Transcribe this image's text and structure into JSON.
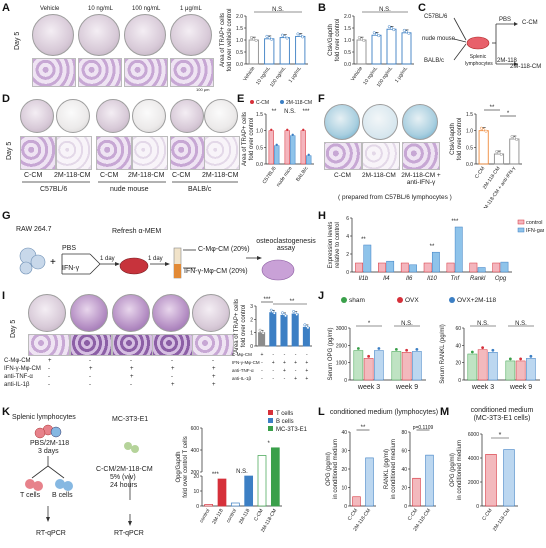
{
  "panel_letters": {
    "a": "A",
    "b": "B",
    "c": "C",
    "d": "D",
    "e": "E",
    "f": "F",
    "g": "G",
    "h": "H",
    "i": "I",
    "j": "J",
    "k": "K",
    "l": "L",
    "m": "M"
  },
  "panelA": {
    "conditions": [
      "Vehicle",
      "10 ng/mL",
      "100 ng/mL",
      "1 μg/mL"
    ],
    "day": "Day 5",
    "scale": "100 μm"
  },
  "panelC": {
    "strains": [
      "C57BL/6",
      "nude mouse",
      "BALB/c"
    ],
    "cell": "Splenic lymphocytes",
    "treat1": "PBS",
    "out1": "C-CM",
    "treat2": "2M-118",
    "out2": "2M-118-CM"
  },
  "panelD": {
    "labels": [
      "C-CM",
      "2M-118-CM",
      "C-CM",
      "2M-118-CM",
      "C-CM",
      "2M-118-CM"
    ],
    "groups": [
      "C57BL/6",
      "nude mouse",
      "BALB/c"
    ],
    "day": "Day 5"
  },
  "panelF": {
    "labels": [
      "C-CM",
      "2M-118-CM",
      "2M-118-CM + anti-IFN-γ"
    ],
    "note": "( prepared from C57BL/6 lymphocytes )"
  },
  "panelG": {
    "cell": "RAW 264.7",
    "pbs": "PBS",
    "ifn": "IFN-γ",
    "day1": "1 day",
    "refresh": "Refresh α-MEM",
    "day2": "1 day",
    "cm1": "C-Mφ-CM (20%)",
    "cm2": "IFN-γ-Mφ-CM (20%)",
    "assay": "osteoclastogenesis assay"
  },
  "panelI": {
    "rows": [
      "C-Mφ-CM",
      "IFN-γ-Mφ-CM",
      "anti-TNF-α",
      "anti-IL-1β"
    ],
    "signs": [
      [
        "+",
        "-",
        "-",
        "-",
        "-"
      ],
      [
        "-",
        "+",
        "+",
        "+",
        "+"
      ],
      [
        "-",
        "-",
        "+",
        "-",
        "+"
      ],
      [
        "-",
        "-",
        "-",
        "+",
        "+"
      ]
    ],
    "day": "Day 5"
  },
  "panelK": {
    "cell": "Splenic lymphocytes",
    "treat": "PBS/2M-118",
    "days": "3 days",
    "tcells": "T cells",
    "bcells": "B cells",
    "rtqpcr1": "RT-qPCR",
    "mc3t3": "MC-3T3-E1",
    "cm": "C-CM/2M-118-CM",
    "conc": "5% (v/v)",
    "hours": "24 hours",
    "rtqpcr2": "RT-qPCR"
  },
  "colors": {
    "grey": "#8c8c8c",
    "blue": "#3c7fc4",
    "red": "#d6303a",
    "pink": "#f4b5bd",
    "lightblue": "#8ec3ea",
    "green": "#3aa04a",
    "orange": "#f08a3a"
  },
  "chart_data": [
    {
      "id": "A",
      "type": "bar",
      "ylabel": "Area of TRAP+ cells fold over vehicle control",
      "categories": [
        "Vehicle",
        "10 ng/mL",
        "100 ng/mL",
        "1 μg/mL"
      ],
      "values": [
        1.0,
        1.05,
        1.1,
        1.15
      ],
      "ylim": [
        0,
        2.0
      ],
      "yticks": [
        "0.0",
        "0.5",
        "1.0",
        "1.5",
        "2.0"
      ],
      "annotation": "N.S."
    },
    {
      "id": "B",
      "type": "bar",
      "ylabel": "Ctsk/Gapdh fold over control",
      "categories": [
        "Vehicle",
        "10 ng/mL",
        "100 ng/mL",
        "1 μg/mL"
      ],
      "values": [
        1.0,
        1.2,
        1.45,
        1.3
      ],
      "ylim": [
        0,
        2.0
      ],
      "yticks": [
        "0.0",
        "0.5",
        "1.0",
        "1.5",
        "2.0"
      ],
      "annotation": "N.S."
    },
    {
      "id": "E",
      "type": "bar",
      "ylabel": "Area of TRAP+ cells fold over control",
      "legend": [
        "C-CM",
        "2M-118-CM"
      ],
      "categories": [
        "C57BL/6",
        "nude mice",
        "BALB/c"
      ],
      "series": [
        {
          "name": "C-CM",
          "values": [
            1.0,
            1.0,
            1.0
          ]
        },
        {
          "name": "2M-118-CM",
          "values": [
            0.55,
            0.85,
            0.25
          ]
        }
      ],
      "ylim": [
        0,
        1.5
      ],
      "yticks": [
        "0.0",
        "0.5",
        "1.0",
        "1.5"
      ],
      "annotations": [
        "**",
        "N.S.",
        "***"
      ]
    },
    {
      "id": "F",
      "type": "bar",
      "ylabel": "Ctsk/Gapdh fold over control",
      "categories": [
        "C-CM",
        "2M-118-CM",
        "2M-118-CM + anti-IFN-γ"
      ],
      "values": [
        1.0,
        0.3,
        0.75
      ],
      "ylim": [
        0,
        1.5
      ],
      "yticks": [
        "0.0",
        "0.5",
        "1.0",
        "1.5"
      ],
      "annotations": [
        "**",
        "*"
      ]
    },
    {
      "id": "H",
      "type": "bar",
      "ylabel": "Expression levels relative to control",
      "legend": [
        "control",
        "IFN-gamma"
      ],
      "categories": [
        "Il1b",
        "Il4",
        "Il6",
        "Il10",
        "Tnf",
        "Rankl",
        "Opg"
      ],
      "series": [
        {
          "name": "control",
          "values": [
            1,
            1,
            1,
            1,
            1,
            1,
            1
          ]
        },
        {
          "name": "IFN-gamma",
          "values": [
            3.0,
            1.2,
            0.8,
            2.2,
            5.0,
            0.5,
            1.1
          ]
        }
      ],
      "ylim": [
        0,
        6
      ],
      "yticks": [
        "0",
        "2",
        "4",
        "6"
      ],
      "annotations": [
        "**",
        "**",
        "***"
      ]
    },
    {
      "id": "I",
      "type": "bar",
      "ylabel": "Area of TRAP+ cells fold over control",
      "categories": [
        "1",
        "2",
        "3",
        "4",
        "5"
      ],
      "values": [
        1.0,
        2.5,
        2.3,
        2.4,
        1.4
      ],
      "ylim": [
        0,
        3
      ],
      "yticks": [
        "0",
        "1",
        "2",
        "3"
      ],
      "annotations": [
        "***",
        "**"
      ]
    },
    {
      "id": "J1",
      "type": "bar",
      "ylabel": "Serum OPG (pg/ml)",
      "legend": [
        "sham",
        "OVX",
        "OVX+2M-118"
      ],
      "categories": [
        "week 3",
        "week 9"
      ],
      "series": [
        {
          "name": "sham",
          "values": [
            1700,
            1650
          ]
        },
        {
          "name": "OVX",
          "values": [
            1250,
            1600
          ]
        },
        {
          "name": "OVX+2M-118",
          "values": [
            1700,
            1650
          ]
        }
      ],
      "ylim": [
        0,
        3000
      ],
      "yticks": [
        "0",
        "1000",
        "2000",
        "3000"
      ],
      "annotations": [
        "*",
        "N.S."
      ]
    },
    {
      "id": "J2",
      "type": "bar",
      "ylabel": "Serum RANKL (pg/ml)",
      "categories": [
        "week 3",
        "week 9"
      ],
      "series": [
        {
          "name": "sham",
          "values": [
            30,
            22
          ]
        },
        {
          "name": "OVX",
          "values": [
            35,
            22
          ]
        },
        {
          "name": "OVX+2M-118",
          "values": [
            32,
            25
          ]
        }
      ],
      "ylim": [
        0,
        60
      ],
      "yticks": [
        "0",
        "20",
        "40",
        "60"
      ],
      "annotations": [
        "N.S.",
        "N.S."
      ]
    },
    {
      "id": "K",
      "type": "bar",
      "ylabel": "Opg/Gapdh fold over control T cells",
      "legend": [
        "T cells",
        "B cells",
        "MC-3T3-E1"
      ],
      "categories": [
        "control",
        "2M-118",
        "control",
        "2M-118",
        "C-CM",
        "2M-118-CM"
      ],
      "values": [
        1,
        18,
        2,
        20,
        350,
        420
      ],
      "ylim": [
        0,
        600
      ],
      "yticks": [
        "0",
        "10",
        "20",
        "200",
        "400",
        "600"
      ],
      "annotations": [
        "***",
        "N.S.",
        "*"
      ]
    },
    {
      "id": "L1",
      "type": "bar",
      "title": "conditioned medium (lymphocytes)",
      "ylabel": "OPG (pg/ml) in conditioned medium",
      "categories": [
        "C-CM",
        "2M-118-CM"
      ],
      "values": [
        5,
        26
      ],
      "ylim": [
        0,
        40
      ],
      "yticks": [
        "0",
        "10",
        "20",
        "30",
        "40"
      ],
      "annotation": "**"
    },
    {
      "id": "L2",
      "type": "bar",
      "ylabel": "RANKL (pg/ml) in conditioned medium",
      "categories": [
        "C-CM",
        "2M-118-CM"
      ],
      "values": [
        30,
        55
      ],
      "ylim": [
        0,
        80
      ],
      "yticks": [
        "0",
        "20",
        "40",
        "60",
        "80"
      ],
      "annotation": "p=0.1109"
    },
    {
      "id": "M",
      "type": "bar",
      "title": "conditioned medium (MC-3T3-E1 cells)",
      "ylabel": "OPG (pg/ml) in conditioned medium",
      "categories": [
        "C-CM",
        "2M-118-CM"
      ],
      "values": [
        4300,
        4700
      ],
      "ylim": [
        0,
        6000
      ],
      "yticks": [
        "0",
        "2000",
        "4000",
        "6000"
      ],
      "annotation": "*"
    }
  ]
}
